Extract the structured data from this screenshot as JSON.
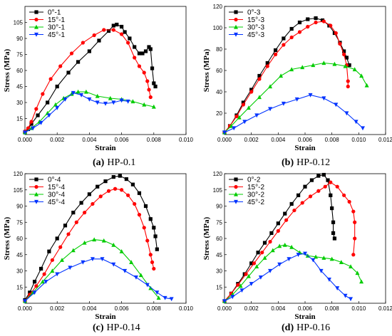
{
  "chart_data": [
    {
      "type": "line",
      "caption_label": "(a)",
      "caption_text": "HP-0.1",
      "xlabel": "Strain",
      "ylabel": "Stress (MPa)",
      "xlim": [
        0,
        0.01
      ],
      "ylim": [
        0,
        120
      ],
      "xticks": [
        "0.000",
        "0.002",
        "0.004",
        "0.006",
        "0.008",
        "0.010"
      ],
      "yticks": [
        "15",
        "30",
        "45",
        "60",
        "75",
        "90",
        "105"
      ],
      "legend_position": "top-left",
      "series": [
        {
          "name": "0°-1",
          "color": "#000000",
          "marker": "square",
          "x": [
            0,
            0.0002,
            0.0004,
            0.0008,
            0.0014,
            0.002,
            0.0027,
            0.0033,
            0.004,
            0.0046,
            0.0052,
            0.0055,
            0.0057,
            0.006,
            0.0062,
            0.0065,
            0.0068,
            0.0071,
            0.0073,
            0.0075,
            0.0077,
            0.0078,
            0.0079,
            0.008,
            0.0081
          ],
          "y": [
            2,
            5,
            10,
            18,
            30,
            45,
            58,
            68,
            78,
            88,
            97,
            102,
            103,
            101,
            96,
            90,
            82,
            76,
            76,
            78,
            82,
            80,
            62,
            48,
            45
          ]
        },
        {
          "name": "15°-1",
          "color": "#ff0000",
          "marker": "circle",
          "x": [
            0,
            0.0002,
            0.0004,
            0.0007,
            0.0011,
            0.0016,
            0.0022,
            0.0029,
            0.0036,
            0.0043,
            0.0049,
            0.0055,
            0.006,
            0.0064,
            0.0068,
            0.0071,
            0.0074,
            0.0076,
            0.0077,
            0.0078
          ],
          "y": [
            3,
            6,
            12,
            24,
            38,
            52,
            64,
            76,
            86,
            93,
            98,
            98,
            94,
            86,
            72,
            64,
            58,
            50,
            42,
            35
          ]
        },
        {
          "name": "30°-1",
          "color": "#00cc00",
          "marker": "triangle-up",
          "x": [
            0,
            0.0004,
            0.0009,
            0.0014,
            0.0019,
            0.0024,
            0.0029,
            0.0033,
            0.0038,
            0.0045,
            0.0053,
            0.006,
            0.0067,
            0.0074,
            0.008
          ],
          "y": [
            2,
            6,
            12,
            20,
            28,
            34,
            38,
            40,
            40,
            36,
            34,
            33,
            31,
            28,
            26
          ]
        },
        {
          "name": "45°-1",
          "color": "#0033ff",
          "marker": "triangle-down",
          "x": [
            0,
            0.0005,
            0.001,
            0.0015,
            0.002,
            0.0025,
            0.003,
            0.0035,
            0.004,
            0.0045,
            0.005,
            0.0055,
            0.006,
            0.0064
          ],
          "y": [
            2,
            6,
            11,
            18,
            25,
            33,
            39,
            37,
            33,
            30,
            29,
            30,
            32,
            31
          ]
        }
      ]
    },
    {
      "type": "line",
      "caption_label": "(b)",
      "caption_text": "HP-0.12",
      "xlabel": "Strain",
      "ylabel": "Stress (MPa)",
      "xlim": [
        0,
        0.012
      ],
      "ylim": [
        0,
        120
      ],
      "xticks": [
        "0.000",
        "0.002",
        "0.004",
        "0.006",
        "0.008",
        "0.010",
        "0.012"
      ],
      "yticks": [
        "20",
        "40",
        "60",
        "80",
        "100",
        "120"
      ],
      "legend_position": "top-left",
      "series": [
        {
          "name": "0°-3",
          "color": "#000000",
          "marker": "square",
          "x": [
            0,
            0.0004,
            0.0009,
            0.0014,
            0.002,
            0.0026,
            0.0032,
            0.0038,
            0.0044,
            0.005,
            0.0056,
            0.0062,
            0.0068,
            0.0073,
            0.0078,
            0.0082,
            0.0086,
            0.0089,
            0.0091,
            0.0093
          ],
          "y": [
            2,
            8,
            18,
            30,
            42,
            55,
            67,
            79,
            90,
            99,
            105,
            108,
            109,
            107,
            102,
            95,
            86,
            78,
            72,
            65
          ]
        },
        {
          "name": "15°-3",
          "color": "#ff0000",
          "marker": "circle",
          "x": [
            0,
            0.0004,
            0.0009,
            0.0014,
            0.002,
            0.0026,
            0.0032,
            0.0038,
            0.0044,
            0.005,
            0.0056,
            0.0062,
            0.0068,
            0.0074,
            0.0079,
            0.0083,
            0.0086,
            0.0089,
            0.0091,
            0.0092,
            0.0092
          ],
          "y": [
            2,
            8,
            17,
            28,
            40,
            52,
            64,
            75,
            84,
            91,
            96,
            101,
            105,
            106,
            102,
            95,
            85,
            75,
            65,
            50,
            45
          ]
        },
        {
          "name": "30°-3",
          "color": "#00cc00",
          "marker": "triangle-up",
          "x": [
            0,
            0.0005,
            0.0011,
            0.0018,
            0.0026,
            0.0034,
            0.0042,
            0.005,
            0.0058,
            0.0066,
            0.0074,
            0.0082,
            0.009,
            0.0097,
            0.0102,
            0.0106
          ],
          "y": [
            2,
            8,
            16,
            25,
            35,
            45,
            55,
            61,
            63,
            65,
            67,
            66,
            64,
            61,
            55,
            46
          ]
        },
        {
          "name": "45°-3",
          "color": "#0033ff",
          "marker": "triangle-down",
          "x": [
            0,
            0.0007,
            0.0015,
            0.0024,
            0.0034,
            0.0044,
            0.0054,
            0.0064,
            0.0074,
            0.0083,
            0.0091,
            0.0098,
            0.0103
          ],
          "y": [
            2,
            6,
            12,
            18,
            24,
            29,
            33,
            37,
            34,
            28,
            20,
            12,
            6
          ]
        }
      ]
    },
    {
      "type": "line",
      "caption_label": "(c)",
      "caption_text": "HP-0.14",
      "xlabel": "Strain",
      "ylabel": "Stress (MPa)",
      "xlim": [
        0,
        0.01
      ],
      "ylim": [
        0,
        120
      ],
      "xticks": [
        "0.000",
        "0.002",
        "0.004",
        "0.006",
        "0.008",
        "0.010"
      ],
      "yticks": [
        "15",
        "30",
        "45",
        "60",
        "75",
        "90",
        "105",
        "120"
      ],
      "legend_position": "top-left",
      "series": [
        {
          "name": "0°-4",
          "color": "#000000",
          "marker": "square",
          "x": [
            0,
            0.0003,
            0.0006,
            0.001,
            0.0015,
            0.002,
            0.0025,
            0.003,
            0.0035,
            0.004,
            0.0045,
            0.005,
            0.0055,
            0.0059,
            0.0063,
            0.0067,
            0.0071,
            0.0075,
            0.0078,
            0.008,
            0.0081,
            0.0082
          ],
          "y": [
            3,
            10,
            20,
            32,
            48,
            60,
            72,
            84,
            93,
            101,
            108,
            113,
            117,
            118,
            115,
            110,
            102,
            90,
            78,
            70,
            62,
            50
          ]
        },
        {
          "name": "15°-4",
          "color": "#ff0000",
          "marker": "circle",
          "x": [
            0,
            0.0003,
            0.0007,
            0.0012,
            0.0017,
            0.0022,
            0.0027,
            0.0032,
            0.0037,
            0.0042,
            0.0047,
            0.0052,
            0.0056,
            0.006,
            0.0064,
            0.0068,
            0.0071,
            0.0074,
            0.0076,
            0.0078,
            0.0079,
            0.008
          ],
          "y": [
            2,
            8,
            16,
            27,
            40,
            52,
            64,
            75,
            84,
            92,
            99,
            104,
            106,
            105,
            100,
            92,
            82,
            70,
            58,
            45,
            38,
            32
          ]
        },
        {
          "name": "30°-4",
          "color": "#00cc00",
          "marker": "triangle-up",
          "x": [
            0,
            0.0005,
            0.0011,
            0.0017,
            0.0023,
            0.003,
            0.0037,
            0.0043,
            0.0049,
            0.0055,
            0.006,
            0.0066,
            0.0072,
            0.0078,
            0.0083
          ],
          "y": [
            2,
            10,
            20,
            30,
            40,
            49,
            56,
            59,
            58,
            54,
            48,
            38,
            26,
            14,
            5
          ]
        },
        {
          "name": "45°-4",
          "color": "#0033ff",
          "marker": "triangle-down",
          "x": [
            0,
            0.0006,
            0.0013,
            0.002,
            0.0028,
            0.0036,
            0.0042,
            0.0048,
            0.0055,
            0.0062,
            0.0069,
            0.0076,
            0.0082,
            0.0087,
            0.0091
          ],
          "y": [
            2,
            10,
            20,
            27,
            33,
            38,
            41,
            41,
            36,
            30,
            24,
            17,
            10,
            5,
            4
          ]
        }
      ]
    },
    {
      "type": "line",
      "caption_label": "(d)",
      "caption_text": "HP-0.16",
      "xlabel": "Strain",
      "ylabel": "Stress (MPa)",
      "xlim": [
        0,
        0.012
      ],
      "ylim": [
        0,
        120
      ],
      "xticks": [
        "0.000",
        "0.002",
        "0.004",
        "0.006",
        "0.008",
        "0.010",
        "0.012"
      ],
      "yticks": [
        "15",
        "30",
        "45",
        "60",
        "75",
        "90",
        "105",
        "120"
      ],
      "legend_position": "top-left",
      "series": [
        {
          "name": "0°-2",
          "color": "#000000",
          "marker": "square",
          "x": [
            0,
            0.0005,
            0.001,
            0.0015,
            0.002,
            0.0025,
            0.003,
            0.0035,
            0.004,
            0.0045,
            0.005,
            0.0055,
            0.006,
            0.0065,
            0.007,
            0.0074,
            0.0077,
            0.0079,
            0.008,
            0.0081,
            0.0081,
            0.0082
          ],
          "y": [
            2,
            9,
            18,
            27,
            37,
            47,
            56,
            65,
            74,
            83,
            92,
            100,
            108,
            114,
            118,
            119,
            114,
            100,
            88,
            75,
            65,
            60
          ]
        },
        {
          "name": "15°-2",
          "color": "#ff0000",
          "marker": "circle",
          "x": [
            0,
            0.0005,
            0.001,
            0.0016,
            0.0022,
            0.0028,
            0.0034,
            0.004,
            0.0046,
            0.0052,
            0.0058,
            0.0064,
            0.007,
            0.0075,
            0.0079,
            0.0084,
            0.0089,
            0.0093,
            0.0096,
            0.0097,
            0.0097,
            0.0096
          ],
          "y": [
            2,
            9,
            17,
            27,
            37,
            47,
            57,
            67,
            77,
            86,
            93,
            99,
            104,
            108,
            112,
            108,
            100,
            94,
            85,
            75,
            60,
            45
          ]
        },
        {
          "name": "30°-2",
          "color": "#00cc00",
          "marker": "triangle-up",
          "x": [
            0,
            0.0006,
            0.0012,
            0.0018,
            0.0024,
            0.003,
            0.0036,
            0.0041,
            0.0045,
            0.005,
            0.0056,
            0.0062,
            0.0068,
            0.0074,
            0.008,
            0.0087,
            0.0094,
            0.0099,
            0.0102
          ],
          "y": [
            2,
            8,
            16,
            25,
            34,
            42,
            49,
            53,
            54,
            52,
            47,
            44,
            43,
            42,
            41,
            38,
            34,
            28,
            20
          ]
        },
        {
          "name": "45°-2",
          "color": "#0033ff",
          "marker": "triangle-down",
          "x": [
            0,
            0.0006,
            0.0013,
            0.002,
            0.0027,
            0.0034,
            0.0041,
            0.0048,
            0.0055,
            0.006,
            0.0066,
            0.0072,
            0.0078,
            0.0084,
            0.009,
            0.0094
          ],
          "y": [
            2,
            6,
            12,
            18,
            24,
            30,
            36,
            41,
            45,
            46,
            40,
            30,
            22,
            14,
            7,
            4
          ]
        }
      ]
    }
  ]
}
